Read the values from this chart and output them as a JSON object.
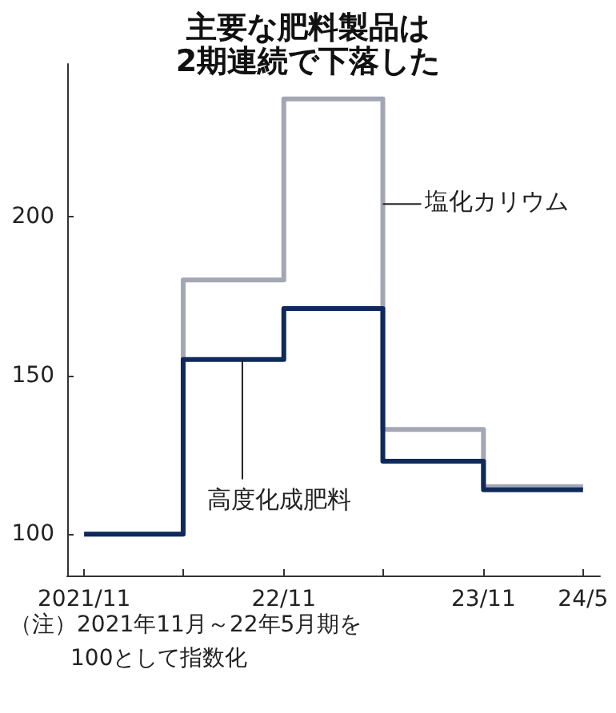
{
  "chart_data": {
    "type": "step",
    "title": "主要な肥料製品は\n2期連続で下落した",
    "x": [
      "2021-11",
      "2022-05",
      "2022-11",
      "2023-05",
      "2023-11",
      "2024-05"
    ],
    "series": [
      {
        "name": "塩化カリウム",
        "color": "#a3a6b4",
        "values": [
          100,
          180,
          237,
          133,
          115,
          115
        ]
      },
      {
        "name": "高度化成肥料",
        "color": "#0e2a5a",
        "values": [
          100,
          155,
          171,
          123,
          114,
          114
        ]
      }
    ],
    "xlim": [
      "2021-10",
      "2024-06"
    ],
    "xticks": [
      {
        "value": "2021-11",
        "label": "2021/11"
      },
      {
        "value": "2022-05",
        "label": null
      },
      {
        "value": "2022-11",
        "label": "22/11"
      },
      {
        "value": "2023-05",
        "label": null
      },
      {
        "value": "2023-11",
        "label": "23/11"
      },
      {
        "value": "2024-05",
        "label": "24/5"
      }
    ],
    "ylim": [
      87,
      248
    ],
    "yticks": [
      100,
      150,
      200
    ],
    "grid": false,
    "legend": false,
    "annotations": [
      "（注）2021年11月～22年5月期を\n100として指数化"
    ]
  }
}
